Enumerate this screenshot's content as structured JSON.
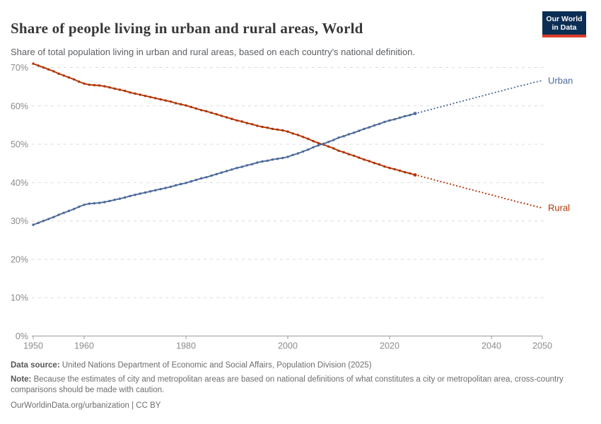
{
  "header": {
    "title": "Share of people living in urban and rural areas, World",
    "subtitle": "Share of total population living in urban and rural areas, based on each country's national definition.",
    "logo": {
      "line1": "Our World",
      "line2": "in Data",
      "bg_color": "#0d2e54",
      "accent_color": "#dc3c2c"
    }
  },
  "chart_data": {
    "type": "line",
    "title": "Share of people living in urban and rural areas, World",
    "xlabel": "",
    "ylabel": "",
    "y_tick_suffix": "%",
    "ylim": [
      0,
      75
    ],
    "yticks": [
      0,
      10,
      20,
      30,
      40,
      50,
      60,
      70
    ],
    "xlim": [
      1950,
      2050
    ],
    "xticks": [
      1950,
      1960,
      1980,
      2000,
      2020,
      2040,
      2050
    ],
    "grid": "horizontal-dashed",
    "legend_position": "end-of-line",
    "projection_start": 2025,
    "x": [
      1950,
      1951,
      1952,
      1953,
      1954,
      1955,
      1956,
      1957,
      1958,
      1959,
      1960,
      1961,
      1962,
      1963,
      1964,
      1965,
      1966,
      1967,
      1968,
      1969,
      1970,
      1971,
      1972,
      1973,
      1974,
      1975,
      1976,
      1977,
      1978,
      1979,
      1980,
      1981,
      1982,
      1983,
      1984,
      1985,
      1986,
      1987,
      1988,
      1989,
      1990,
      1991,
      1992,
      1993,
      1994,
      1995,
      1996,
      1997,
      1998,
      1999,
      2000,
      2001,
      2002,
      2003,
      2004,
      2005,
      2006,
      2007,
      2008,
      2009,
      2010,
      2011,
      2012,
      2013,
      2014,
      2015,
      2016,
      2017,
      2018,
      2019,
      2020,
      2021,
      2022,
      2023,
      2024,
      2025,
      2026,
      2027,
      2028,
      2029,
      2030,
      2031,
      2032,
      2033,
      2034,
      2035,
      2036,
      2037,
      2038,
      2039,
      2040,
      2041,
      2042,
      2043,
      2044,
      2045,
      2046,
      2047,
      2048,
      2049,
      2050
    ],
    "series": [
      {
        "name": "Rural",
        "color": "#b13507",
        "values": [
          71.0,
          70.5,
          70.0,
          69.5,
          69.0,
          68.4,
          67.9,
          67.4,
          66.9,
          66.3,
          65.8,
          65.5,
          65.4,
          65.3,
          65.1,
          64.8,
          64.5,
          64.2,
          63.9,
          63.5,
          63.2,
          62.9,
          62.6,
          62.3,
          62.0,
          61.7,
          61.4,
          61.1,
          60.7,
          60.4,
          60.1,
          59.7,
          59.3,
          58.9,
          58.6,
          58.2,
          57.8,
          57.4,
          57.0,
          56.6,
          56.2,
          55.9,
          55.5,
          55.2,
          54.8,
          54.5,
          54.3,
          54.0,
          53.8,
          53.6,
          53.3,
          52.8,
          52.4,
          51.9,
          51.4,
          50.8,
          50.3,
          49.9,
          49.4,
          48.9,
          48.3,
          47.9,
          47.4,
          47.0,
          46.5,
          46.0,
          45.6,
          45.1,
          44.7,
          44.2,
          43.8,
          43.5,
          43.1,
          42.7,
          42.4,
          42.0,
          41.7,
          41.3,
          41.0,
          40.6,
          40.3,
          39.9,
          39.6,
          39.2,
          38.9,
          38.5,
          38.2,
          37.8,
          37.5,
          37.1,
          36.8,
          36.4,
          36.1,
          35.7,
          35.4,
          35.0,
          34.7,
          34.4,
          34.0,
          33.7,
          33.4
        ]
      },
      {
        "name": "Urban",
        "color": "#4c6a9c",
        "values": [
          29.0,
          29.5,
          30.0,
          30.5,
          31.0,
          31.6,
          32.1,
          32.6,
          33.1,
          33.7,
          34.2,
          34.5,
          34.6,
          34.7,
          34.9,
          35.2,
          35.5,
          35.8,
          36.1,
          36.5,
          36.8,
          37.1,
          37.4,
          37.7,
          38.0,
          38.3,
          38.6,
          38.9,
          39.3,
          39.6,
          39.9,
          40.3,
          40.7,
          41.1,
          41.4,
          41.8,
          42.2,
          42.6,
          43.0,
          43.4,
          43.8,
          44.1,
          44.5,
          44.8,
          45.2,
          45.5,
          45.7,
          46.0,
          46.2,
          46.4,
          46.7,
          47.2,
          47.6,
          48.1,
          48.6,
          49.2,
          49.7,
          50.1,
          50.6,
          51.1,
          51.7,
          52.1,
          52.6,
          53.0,
          53.5,
          54.0,
          54.4,
          54.9,
          55.3,
          55.8,
          56.2,
          56.5,
          56.9,
          57.3,
          57.6,
          58.0,
          58.3,
          58.7,
          59.0,
          59.4,
          59.7,
          60.1,
          60.4,
          60.8,
          61.1,
          61.5,
          61.8,
          62.2,
          62.5,
          62.9,
          63.2,
          63.6,
          63.9,
          64.3,
          64.6,
          65.0,
          65.3,
          65.6,
          66.0,
          66.3,
          66.6
        ]
      }
    ]
  },
  "footer": {
    "data_source_label": "Data source:",
    "data_source": "United Nations Department of Economic and Social Affairs, Population Division (2025)",
    "note_label": "Note:",
    "note": "Because the estimates of city and metropolitan areas are based on national definitions of what constitutes a city or metropolitan area, cross-country comparisons should be made with caution.",
    "url": "OurWorldinData.org/urbanization",
    "separator": " | ",
    "license": "CC BY"
  }
}
